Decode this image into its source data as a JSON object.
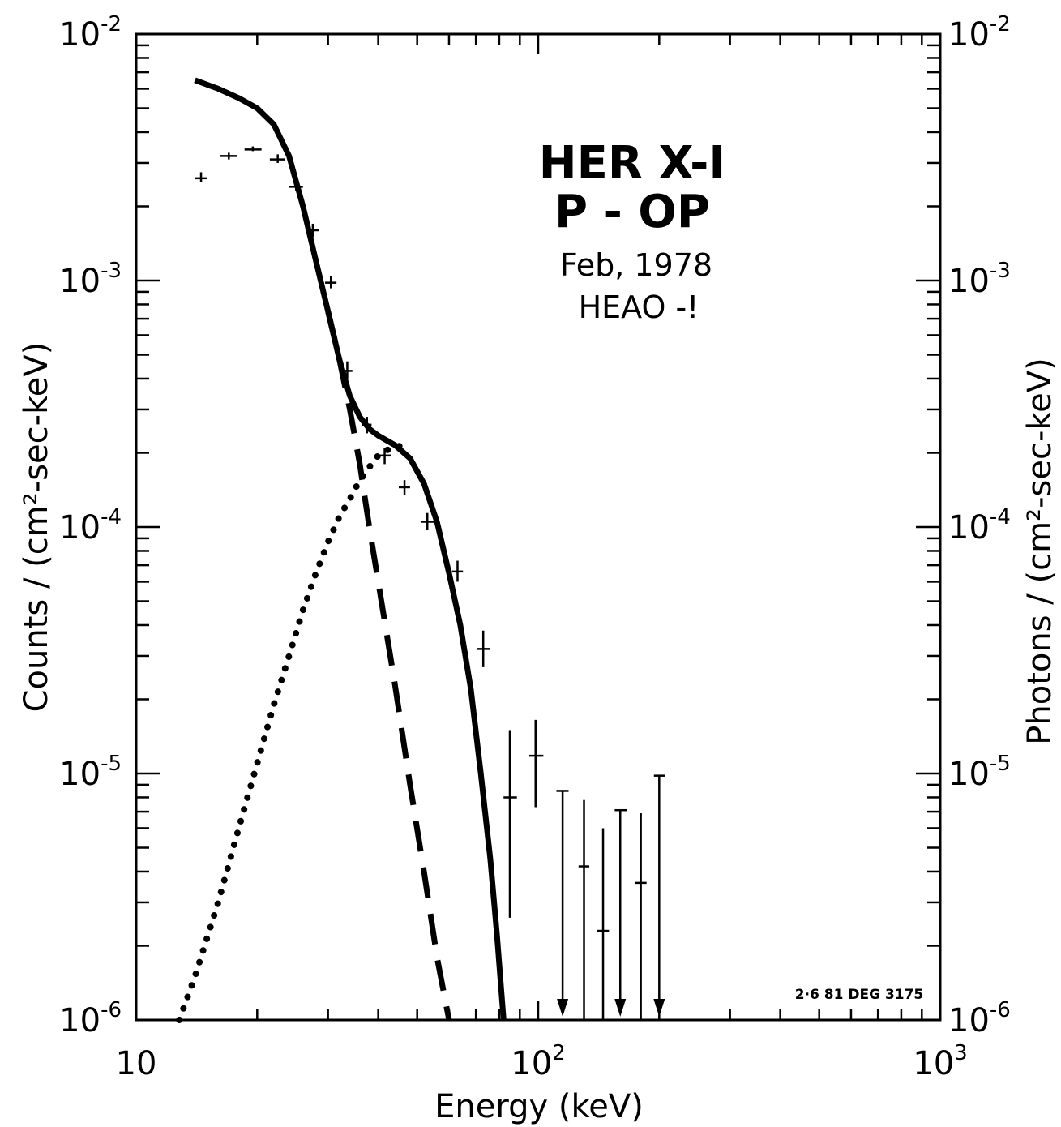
{
  "chart_data": {
    "type": "line",
    "xlabel": "Energy (keV)",
    "ylabel_left": "Counts / (cm²-sec-keV)",
    "ylabel_right": "Photons / (cm²-sec-keV)",
    "xscale": "log",
    "yscale": "log",
    "xlim": [
      10,
      1000
    ],
    "ylim": [
      1e-06,
      0.01
    ],
    "x_tick_labels": [
      {
        "value": 10,
        "base": "10",
        "exp": ""
      },
      {
        "value": 100,
        "base": "10",
        "exp": "2"
      },
      {
        "value": 1000,
        "base": "10",
        "exp": "3"
      }
    ],
    "y_tick_labels": [
      {
        "value": 0.01,
        "base": "10",
        "exp": "-2"
      },
      {
        "value": 0.001,
        "base": "10",
        "exp": "-3"
      },
      {
        "value": 0.0001,
        "base": "10",
        "exp": "-4"
      },
      {
        "value": 1e-05,
        "base": "10",
        "exp": "-5"
      },
      {
        "value": 1e-06,
        "base": "10",
        "exp": "-6"
      }
    ],
    "annotations": {
      "line1": "HER X-I",
      "line2": "P - OP",
      "line3": "Feb, 1978",
      "line4": "HEAO -!",
      "code": "2·6 81 DEG 3175"
    },
    "curves": [
      {
        "style": "solid",
        "points": [
          [
            14,
            0.0065
          ],
          [
            16,
            0.006
          ],
          [
            18,
            0.0055
          ],
          [
            20,
            0.005
          ],
          [
            22,
            0.0043
          ],
          [
            24,
            0.0032
          ],
          [
            26,
            0.002
          ],
          [
            28,
            0.0012
          ],
          [
            30,
            0.00075
          ],
          [
            32,
            0.00048
          ],
          [
            34,
            0.00034
          ],
          [
            36,
            0.00028
          ],
          [
            38,
            0.00025
          ],
          [
            40,
            0.000235
          ],
          [
            44,
            0.000215
          ],
          [
            48,
            0.00019
          ],
          [
            52,
            0.00015
          ],
          [
            56,
            0.000105
          ],
          [
            60,
            6.5e-05
          ],
          [
            64,
            4e-05
          ],
          [
            68,
            2.2e-05
          ],
          [
            72,
            1e-05
          ],
          [
            76,
            4.5e-06
          ],
          [
            79,
            2.2e-06
          ],
          [
            82,
            1e-06
          ]
        ]
      },
      {
        "style": "dashed",
        "points": [
          [
            30,
            0.00075
          ],
          [
            32,
            0.00048
          ],
          [
            34,
            0.0003
          ],
          [
            36,
            0.00018
          ],
          [
            38,
            0.0001
          ],
          [
            40,
            6e-05
          ],
          [
            44,
            2.3e-05
          ],
          [
            48,
            9e-06
          ],
          [
            52,
            4e-06
          ],
          [
            56,
            1.8e-06
          ],
          [
            60,
            1e-06
          ]
        ]
      },
      {
        "style": "dotted",
        "points": [
          [
            12.8,
            1e-06
          ],
          [
            14,
            1.5e-06
          ],
          [
            16,
            3e-06
          ],
          [
            18,
            6e-06
          ],
          [
            20,
            1.1e-05
          ],
          [
            22,
            1.9e-05
          ],
          [
            24,
            3e-05
          ],
          [
            26,
            4.6e-05
          ],
          [
            28,
            6.5e-05
          ],
          [
            30,
            8.7e-05
          ],
          [
            32,
            0.00011
          ],
          [
            34,
            0.00013
          ],
          [
            36,
            0.000155
          ],
          [
            38,
            0.000175
          ],
          [
            40,
            0.000195
          ],
          [
            42,
            0.000205
          ],
          [
            44,
            0.00021
          ],
          [
            46,
            0.000215
          ]
        ]
      }
    ],
    "data_points": [
      {
        "x": 14.5,
        "y": 0.0026,
        "xerr": [
          14.0,
          15.0
        ],
        "yerr": [
          0.0025,
          0.00275
        ]
      },
      {
        "x": 17,
        "y": 0.0032,
        "xerr": [
          16.2,
          17.8
        ],
        "yerr": [
          0.0031,
          0.0033
        ]
      },
      {
        "x": 19.5,
        "y": 0.0034,
        "xerr": [
          18.6,
          20.5
        ],
        "yerr": [
          0.00335,
          0.0035
        ]
      },
      {
        "x": 22.5,
        "y": 0.0031,
        "xerr": [
          21.5,
          23.5
        ],
        "yerr": [
          0.003,
          0.00325
        ]
      },
      {
        "x": 25,
        "y": 0.0024,
        "xerr": [
          24.0,
          26.0
        ],
        "yerr": [
          0.0023,
          0.0025
        ]
      },
      {
        "x": 27.5,
        "y": 0.0016,
        "xerr": [
          26.5,
          28.5
        ],
        "yerr": [
          0.0015,
          0.0017
        ]
      },
      {
        "x": 30.5,
        "y": 0.00098,
        "xerr": [
          29.5,
          31.5
        ],
        "yerr": [
          0.00093,
          0.00104
        ]
      },
      {
        "x": 33.5,
        "y": 0.00043,
        "xerr": [
          32.5,
          34.5
        ],
        "yerr": [
          0.0004,
          0.00047
        ]
      },
      {
        "x": 37.5,
        "y": 0.00026,
        "xerr": [
          36.5,
          38.5
        ],
        "yerr": [
          0.00024,
          0.00028
        ]
      },
      {
        "x": 41.5,
        "y": 0.000195,
        "xerr": [
          40.0,
          43.0
        ],
        "yerr": [
          0.00018,
          0.00021
        ]
      },
      {
        "x": 46.5,
        "y": 0.000145,
        "xerr": [
          45.0,
          48.0
        ],
        "yerr": [
          0.000135,
          0.000155
        ]
      },
      {
        "x": 53,
        "y": 0.000105,
        "xerr": [
          51.0,
          55.0
        ],
        "yerr": [
          9.7e-05,
          0.000114
        ]
      },
      {
        "x": 63,
        "y": 6.6e-05,
        "xerr": [
          61.0,
          65.0
        ],
        "yerr": [
          6e-05,
          7.3e-05
        ]
      },
      {
        "x": 73,
        "y": 3.2e-05,
        "xerr": [
          70.5,
          76.0
        ],
        "yerr": [
          2.7e-05,
          3.8e-05
        ]
      },
      {
        "x": 85,
        "y": 8e-06,
        "xerr": [
          82.0,
          88.5
        ],
        "yerr": [
          2.6e-06,
          1.5e-05
        ]
      },
      {
        "x": 98.5,
        "y": 1.18e-05,
        "xerr": [
          95.0,
          103.0
        ],
        "yerr": [
          7.3e-06,
          1.65e-05
        ]
      },
      {
        "x": 115,
        "y": 8.5e-06,
        "xerr": [
          111.0,
          119.0
        ],
        "upper_limit": true
      },
      {
        "x": 130,
        "y": 4.2e-06,
        "xerr": [
          126.0,
          134.0
        ],
        "yerr": [
          1e-06,
          7.8e-06
        ]
      },
      {
        "x": 145,
        "y": 2.3e-06,
        "xerr": [
          140.0,
          150.0
        ],
        "yerr": [
          1e-06,
          6e-06
        ]
      },
      {
        "x": 160,
        "y": 7.1e-06,
        "xerr": [
          155.0,
          166.0
        ],
        "upper_limit": true
      },
      {
        "x": 180,
        "y": 3.6e-06,
        "xerr": [
          174.0,
          186.0
        ],
        "yerr": [
          1e-06,
          6.9e-06
        ]
      },
      {
        "x": 200,
        "y": 9.8e-06,
        "xerr": [
          194.0,
          207.0
        ],
        "upper_limit": true
      }
    ]
  }
}
